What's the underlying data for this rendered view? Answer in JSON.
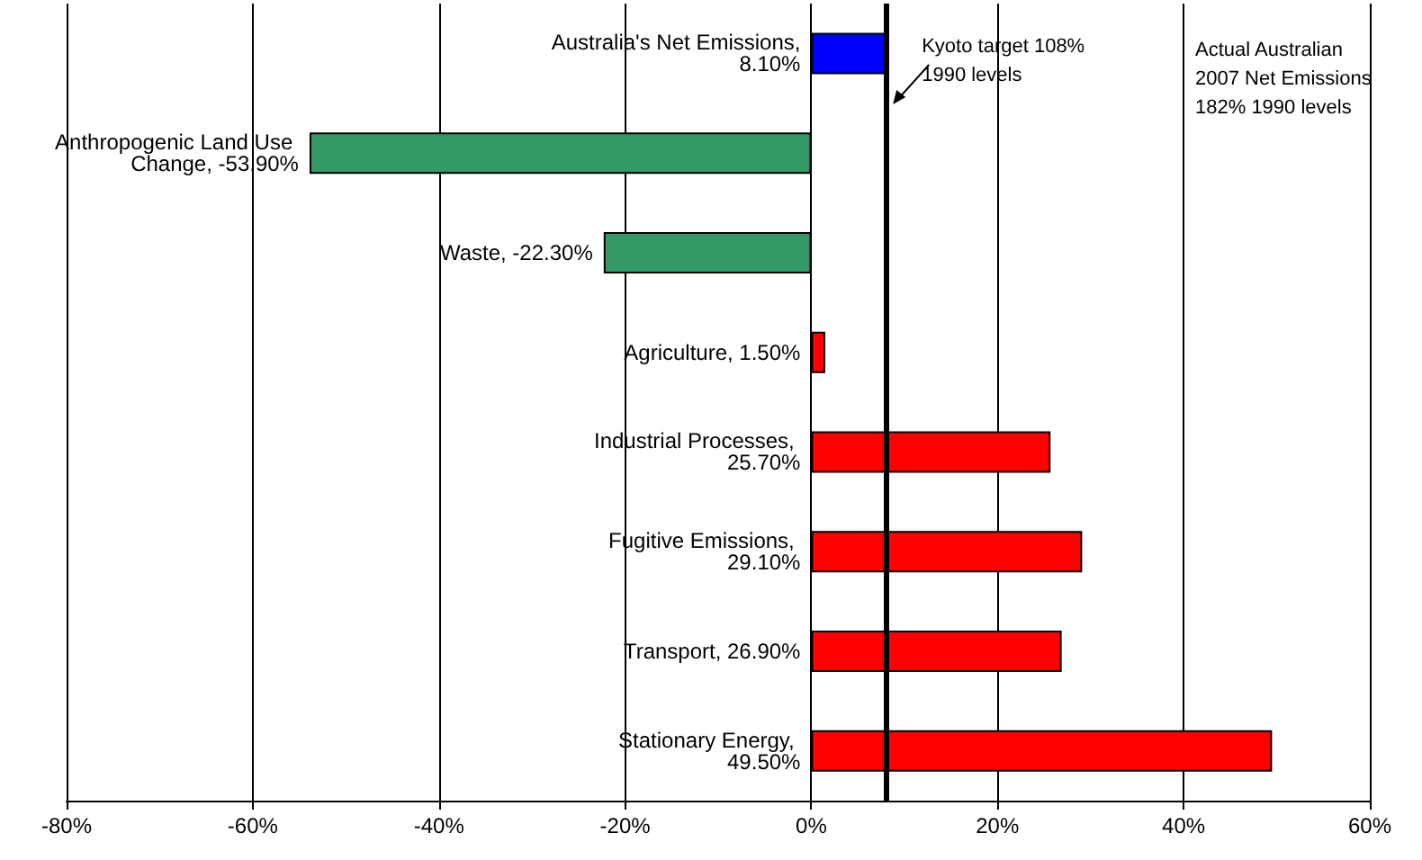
{
  "chart_data": {
    "type": "bar",
    "orientation": "horizontal",
    "categories": [
      null,
      null,
      null,
      null,
      null,
      null,
      null,
      null
    ],
    "values": [
      8.1,
      -53.9,
      -22.3,
      1.5,
      25.7,
      29.1,
      26.9,
      49.5
    ],
    "value_labels": [
      "Australia's Net Emissions, 8.10%",
      "Anthropogenic Land Use Change, -53.90%",
      "Waste, -22.30%",
      "Agriculture, 1.50%",
      "Industrial Processes, 25.70%",
      "Fugitive Emissions, 29.10%",
      "Transport, 26.90%",
      "Stationary Energy, 49.50%"
    ],
    "colors": [
      "#0000ff",
      "#339966",
      "#339966",
      "#ff0000",
      "#ff0000",
      "#ff0000",
      "#ff0000",
      "#ff0000"
    ],
    "xlim": [
      -80,
      60
    ],
    "xticks": [
      {
        "value": -80,
        "label": "-80%"
      },
      {
        "value": -60,
        "label": "-60%"
      },
      {
        "value": -40,
        "label": "-40%"
      },
      {
        "value": -20,
        "label": "-20%"
      },
      {
        "value": 0,
        "label": "0%"
      },
      {
        "value": 20,
        "label": "20%"
      },
      {
        "value": 40,
        "label": "40%"
      },
      {
        "value": 60,
        "label": "60%"
      }
    ],
    "grid": "x",
    "tick_labels": "x",
    "ref_lines": [
      {
        "axis": "x",
        "value": 8,
        "label": "Kyoto target 108%\n1990 levels",
        "color": "#000000",
        "line_style": "solid"
      }
    ],
    "annotations": [
      "Actual Australian\n2007 Net Emissions\n182% 1990 levels"
    ]
  }
}
